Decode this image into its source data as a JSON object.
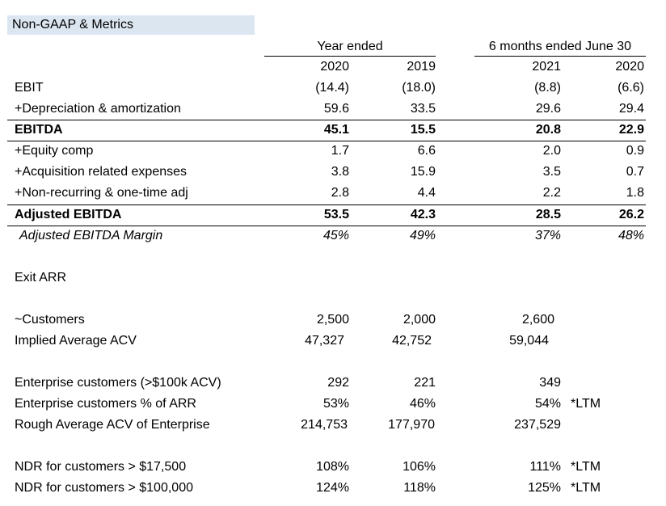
{
  "title": "Non-GAAP & Metrics",
  "groups": {
    "year": "Year ended",
    "six": "6 months ended June 30"
  },
  "years": [
    "2020",
    "2019",
    "2021",
    "2020"
  ],
  "rows": [
    {
      "label": "EBIT",
      "v": [
        "(14.4)",
        "(18.0)",
        "(8.8)",
        "(6.6)"
      ]
    },
    {
      "label": "+Depreciation & amortization",
      "v": [
        "59.6",
        "33.5",
        "29.6",
        "29.4"
      ]
    },
    {
      "label": "EBITDA",
      "v": [
        "45.1",
        "15.5",
        "20.8",
        "22.9"
      ]
    },
    {
      "label": "+Equity comp",
      "v": [
        "1.7",
        "6.6",
        "2.0",
        "0.9"
      ]
    },
    {
      "label": "+Acquisition related expenses",
      "v": [
        "3.8",
        "15.9",
        "3.5",
        "0.7"
      ]
    },
    {
      "label": "+Non-recurring & one-time adj",
      "v": [
        "2.8",
        "4.4",
        "2.2",
        "1.8"
      ]
    },
    {
      "label": "Adjusted EBITDA",
      "v": [
        "53.5",
        "42.3",
        "28.5",
        "26.2"
      ]
    },
    {
      "label": "Adjusted EBITDA Margin",
      "v": [
        "45%",
        "49%",
        "37%",
        "48%"
      ]
    }
  ],
  "exit_arr": "Exit ARR",
  "metrics1": [
    {
      "label": "~Customers",
      "v": [
        "2,500",
        "2,000",
        "2,600"
      ]
    },
    {
      "label": "Implied Average ACV",
      "v": [
        "47,327",
        "42,752",
        "59,044"
      ]
    }
  ],
  "metrics2": [
    {
      "label": "Enterprise customers (>$100k ACV)",
      "v": [
        "292",
        "221",
        "349"
      ],
      "note": ""
    },
    {
      "label": "Enterprise customers % of ARR",
      "v": [
        "53%",
        "46%",
        "54%"
      ],
      "note": "*LTM"
    },
    {
      "label": "Rough Average ACV of Enterprise",
      "v": [
        "214,753",
        "177,970",
        "237,529"
      ],
      "note": ""
    }
  ],
  "metrics3": [
    {
      "label": "NDR for customers > $17,500",
      "v": [
        "108%",
        "106%",
        "111%"
      ],
      "note": "*LTM"
    },
    {
      "label": "NDR for customers > $100,000",
      "v": [
        "124%",
        "118%",
        "125%"
      ],
      "note": "*LTM"
    }
  ]
}
